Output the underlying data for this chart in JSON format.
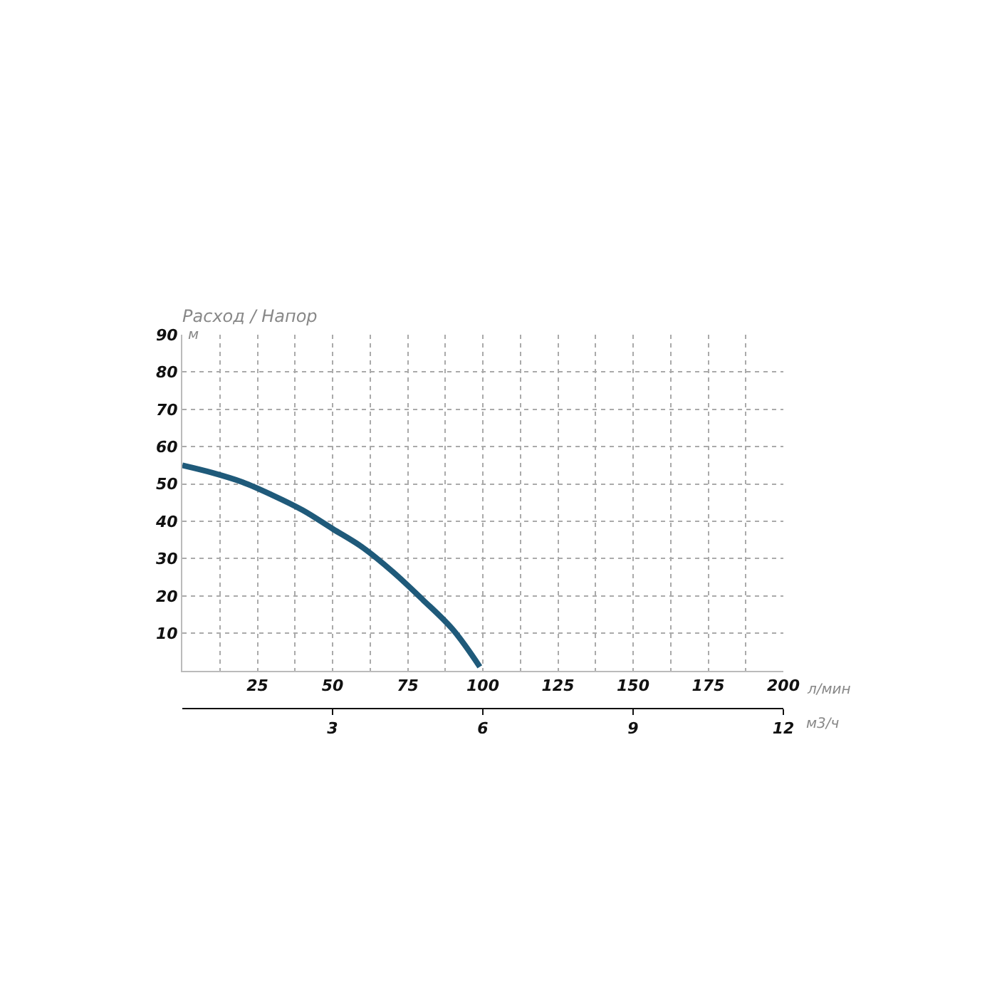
{
  "chart_data": {
    "type": "line",
    "title": "Расход / Напор",
    "ylabel": "м",
    "xlabel": "л/мин",
    "x2label": "м3/ч",
    "x": [
      0,
      10,
      20,
      30,
      40,
      50,
      60,
      70,
      80,
      90,
      99
    ],
    "series": [
      {
        "color": "#1f5a7a",
        "values": [
          55,
          53,
          50.5,
          47,
          43,
          38,
          33,
          26.5,
          19,
          11,
          1
        ]
      }
    ],
    "xlim": [
      0,
      200
    ],
    "xticks": [
      {
        "value": 12.5,
        "label": null
      },
      25,
      {
        "value": 37.5,
        "label": null
      },
      50,
      {
        "value": 62.5,
        "label": null
      },
      75,
      {
        "value": 87.5,
        "label": null
      },
      100,
      {
        "value": 112.5,
        "label": null
      },
      125,
      {
        "value": 137.5,
        "label": null
      },
      150,
      {
        "value": 162.5,
        "label": null
      },
      175,
      {
        "value": 187.5,
        "label": null
      },
      200
    ],
    "x2lim": [
      0,
      12
    ],
    "x2ticks": [
      3,
      6,
      9,
      12
    ],
    "ylim": [
      0,
      90
    ],
    "yticks": [
      10,
      20,
      30,
      40,
      50,
      60,
      70,
      80,
      90
    ],
    "grid": true,
    "marker": "none",
    "line_style": "solid"
  }
}
